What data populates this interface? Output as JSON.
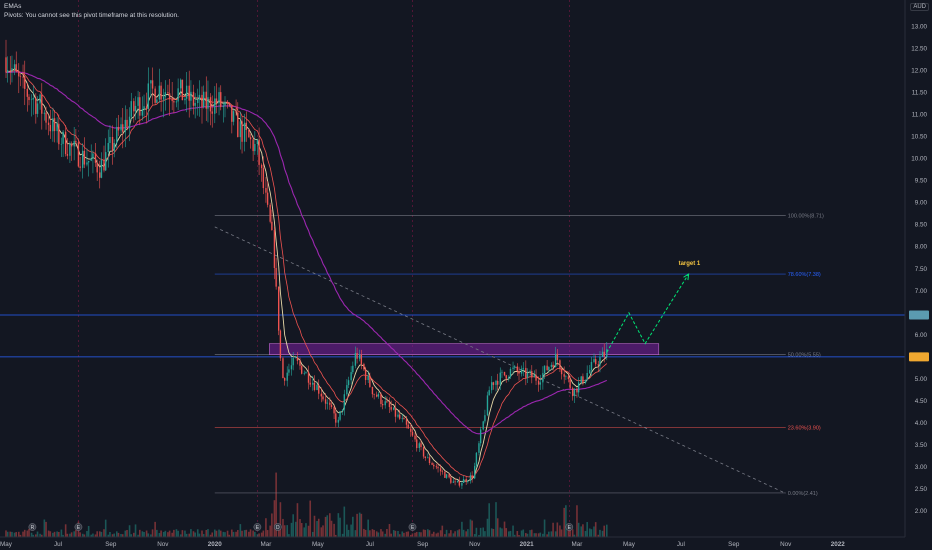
{
  "legend": {
    "line1": "EMAs",
    "line2": "Pivots: You cannot see this pivot timeframe at this resolution."
  },
  "currency": "AUD",
  "colors": {
    "background": "#131722",
    "up": "#26a69a",
    "down": "#ef5350",
    "ema_fast": "#e8d9a8",
    "ema_mid": "#ef5350",
    "ema_slow": "#9c27b0",
    "zone": "#7b1fa2",
    "blue_line": "#2962ff",
    "target_arrow": "#00e676",
    "trend_line": "#787b86"
  },
  "chart_data": {
    "type": "candlestick",
    "ylim": [
      1.75,
      13.5
    ],
    "y_ticks": [
      "13.50",
      "13.00",
      "12.50",
      "12.00",
      "11.50",
      "11.00",
      "10.50",
      "10.00",
      "9.50",
      "9.00",
      "8.50",
      "8.00",
      "7.50",
      "7.00",
      "6.50",
      "6.00",
      "5.50",
      "5.00",
      "4.50",
      "4.00",
      "3.50",
      "3.00",
      "2.50",
      "2.00"
    ],
    "x_range": [
      "2019-05-01",
      "2022-03-01"
    ],
    "x_ticks": [
      {
        "label": "May",
        "date": "2019-05-01"
      },
      {
        "label": "Jul",
        "date": "2019-07-01"
      },
      {
        "label": "Sep",
        "date": "2019-09-01"
      },
      {
        "label": "Nov",
        "date": "2019-11-01"
      },
      {
        "label": "2020",
        "date": "2020-01-01"
      },
      {
        "label": "Mar",
        "date": "2020-03-01"
      },
      {
        "label": "May",
        "date": "2020-05-01"
      },
      {
        "label": "Jul",
        "date": "2020-07-01"
      },
      {
        "label": "Sep",
        "date": "2020-09-01"
      },
      {
        "label": "Nov",
        "date": "2020-11-01"
      },
      {
        "label": "2021",
        "date": "2021-01-01"
      },
      {
        "label": "Mar",
        "date": "2021-03-01"
      },
      {
        "label": "May",
        "date": "2021-05-01"
      },
      {
        "label": "Jul",
        "date": "2021-07-01"
      },
      {
        "label": "Sep",
        "date": "2021-09-01"
      },
      {
        "label": "Nov",
        "date": "2021-11-01"
      },
      {
        "label": "2022",
        "date": "2022-01-01"
      }
    ],
    "price_path": [
      {
        "date": "2019-05-01",
        "price": 12.3
      },
      {
        "date": "2019-05-20",
        "price": 11.6
      },
      {
        "date": "2019-06-10",
        "price": 11.2
      },
      {
        "date": "2019-07-01",
        "price": 10.5
      },
      {
        "date": "2019-07-25",
        "price": 10.1
      },
      {
        "date": "2019-08-20",
        "price": 9.8
      },
      {
        "date": "2019-09-05",
        "price": 10.4
      },
      {
        "date": "2019-10-01",
        "price": 11.2
      },
      {
        "date": "2019-10-25",
        "price": 11.6
      },
      {
        "date": "2019-11-20",
        "price": 11.5
      },
      {
        "date": "2019-12-15",
        "price": 11.2
      },
      {
        "date": "2020-01-05",
        "price": 11.3
      },
      {
        "date": "2020-01-25",
        "price": 10.8
      },
      {
        "date": "2020-02-20",
        "price": 10.2
      },
      {
        "date": "2020-03-10",
        "price": 8.0
      },
      {
        "date": "2020-03-20",
        "price": 5.0
      },
      {
        "date": "2020-04-05",
        "price": 5.4
      },
      {
        "date": "2020-05-01",
        "price": 4.8
      },
      {
        "date": "2020-05-25",
        "price": 4.0
      },
      {
        "date": "2020-06-15",
        "price": 5.6
      },
      {
        "date": "2020-07-05",
        "price": 4.7
      },
      {
        "date": "2020-08-10",
        "price": 4.0
      },
      {
        "date": "2020-09-05",
        "price": 3.2
      },
      {
        "date": "2020-10-10",
        "price": 2.6
      },
      {
        "date": "2020-10-30",
        "price": 2.8
      },
      {
        "date": "2020-11-20",
        "price": 4.9
      },
      {
        "date": "2020-12-15",
        "price": 5.2
      },
      {
        "date": "2021-01-15",
        "price": 5.0
      },
      {
        "date": "2021-02-05",
        "price": 5.5
      },
      {
        "date": "2021-02-25",
        "price": 4.7
      },
      {
        "date": "2021-03-20",
        "price": 5.3
      },
      {
        "date": "2021-04-05",
        "price": 5.6
      }
    ],
    "projection": [
      {
        "date": "2021-04-05",
        "price": 5.6
      },
      {
        "date": "2021-05-01",
        "price": 6.5
      },
      {
        "date": "2021-05-20",
        "price": 5.8
      },
      {
        "date": "2021-07-10",
        "price": 7.38
      }
    ],
    "fib_levels": [
      {
        "ratio": "100.00%",
        "value": 8.71,
        "label": "100.00%(8.71)",
        "color": "#787b86"
      },
      {
        "ratio": "78.60%",
        "value": 7.38,
        "label": "78.60%(7.38)",
        "color": "#2962ff"
      },
      {
        "ratio": "50.00%",
        "value": 5.55,
        "label": "50.00%(5.55)",
        "color": "#787b86"
      },
      {
        "ratio": "23.60%",
        "value": 3.9,
        "label": "23.60%(3.90)",
        "color": "#ef5350"
      },
      {
        "ratio": "0.00%",
        "value": 2.41,
        "label": "0.00%(2.41)",
        "color": "#787b86"
      }
    ],
    "fib_start_date": "2020-01-01",
    "fib_end_date": "2021-11-01",
    "horizontal_lines": [
      {
        "value": 6.45,
        "color": "#2962ff"
      },
      {
        "value": 5.5,
        "color": "#2962ff"
      }
    ],
    "zone": {
      "from_date": "2020-03-05",
      "to_date": "2021-06-05",
      "low": 5.55,
      "high": 5.8
    },
    "trendline": {
      "from_date": "2020-01-01",
      "from_value": 8.45,
      "to_date": "2021-11-01",
      "to_value": 2.4
    },
    "annotation": {
      "text": "target 1",
      "date": "2021-07-10",
      "value": 7.38
    },
    "axis_badges": [
      {
        "value": 6.45,
        "color": "#5b9bb0"
      },
      {
        "value": 5.5,
        "color": "#f0a830"
      }
    ],
    "event_markers": [
      {
        "label": "R",
        "date": "2019-06-01"
      },
      {
        "label": "E",
        "date": "2019-07-25"
      },
      {
        "label": "E",
        "date": "2020-02-20"
      },
      {
        "label": "D",
        "date": "2020-03-15"
      },
      {
        "label": "E",
        "date": "2020-08-20"
      },
      {
        "label": "E",
        "date": "2021-02-20"
      }
    ],
    "vertical_markers": [
      "2019-07-25",
      "2020-02-20",
      "2020-08-20",
      "2021-02-20"
    ]
  }
}
